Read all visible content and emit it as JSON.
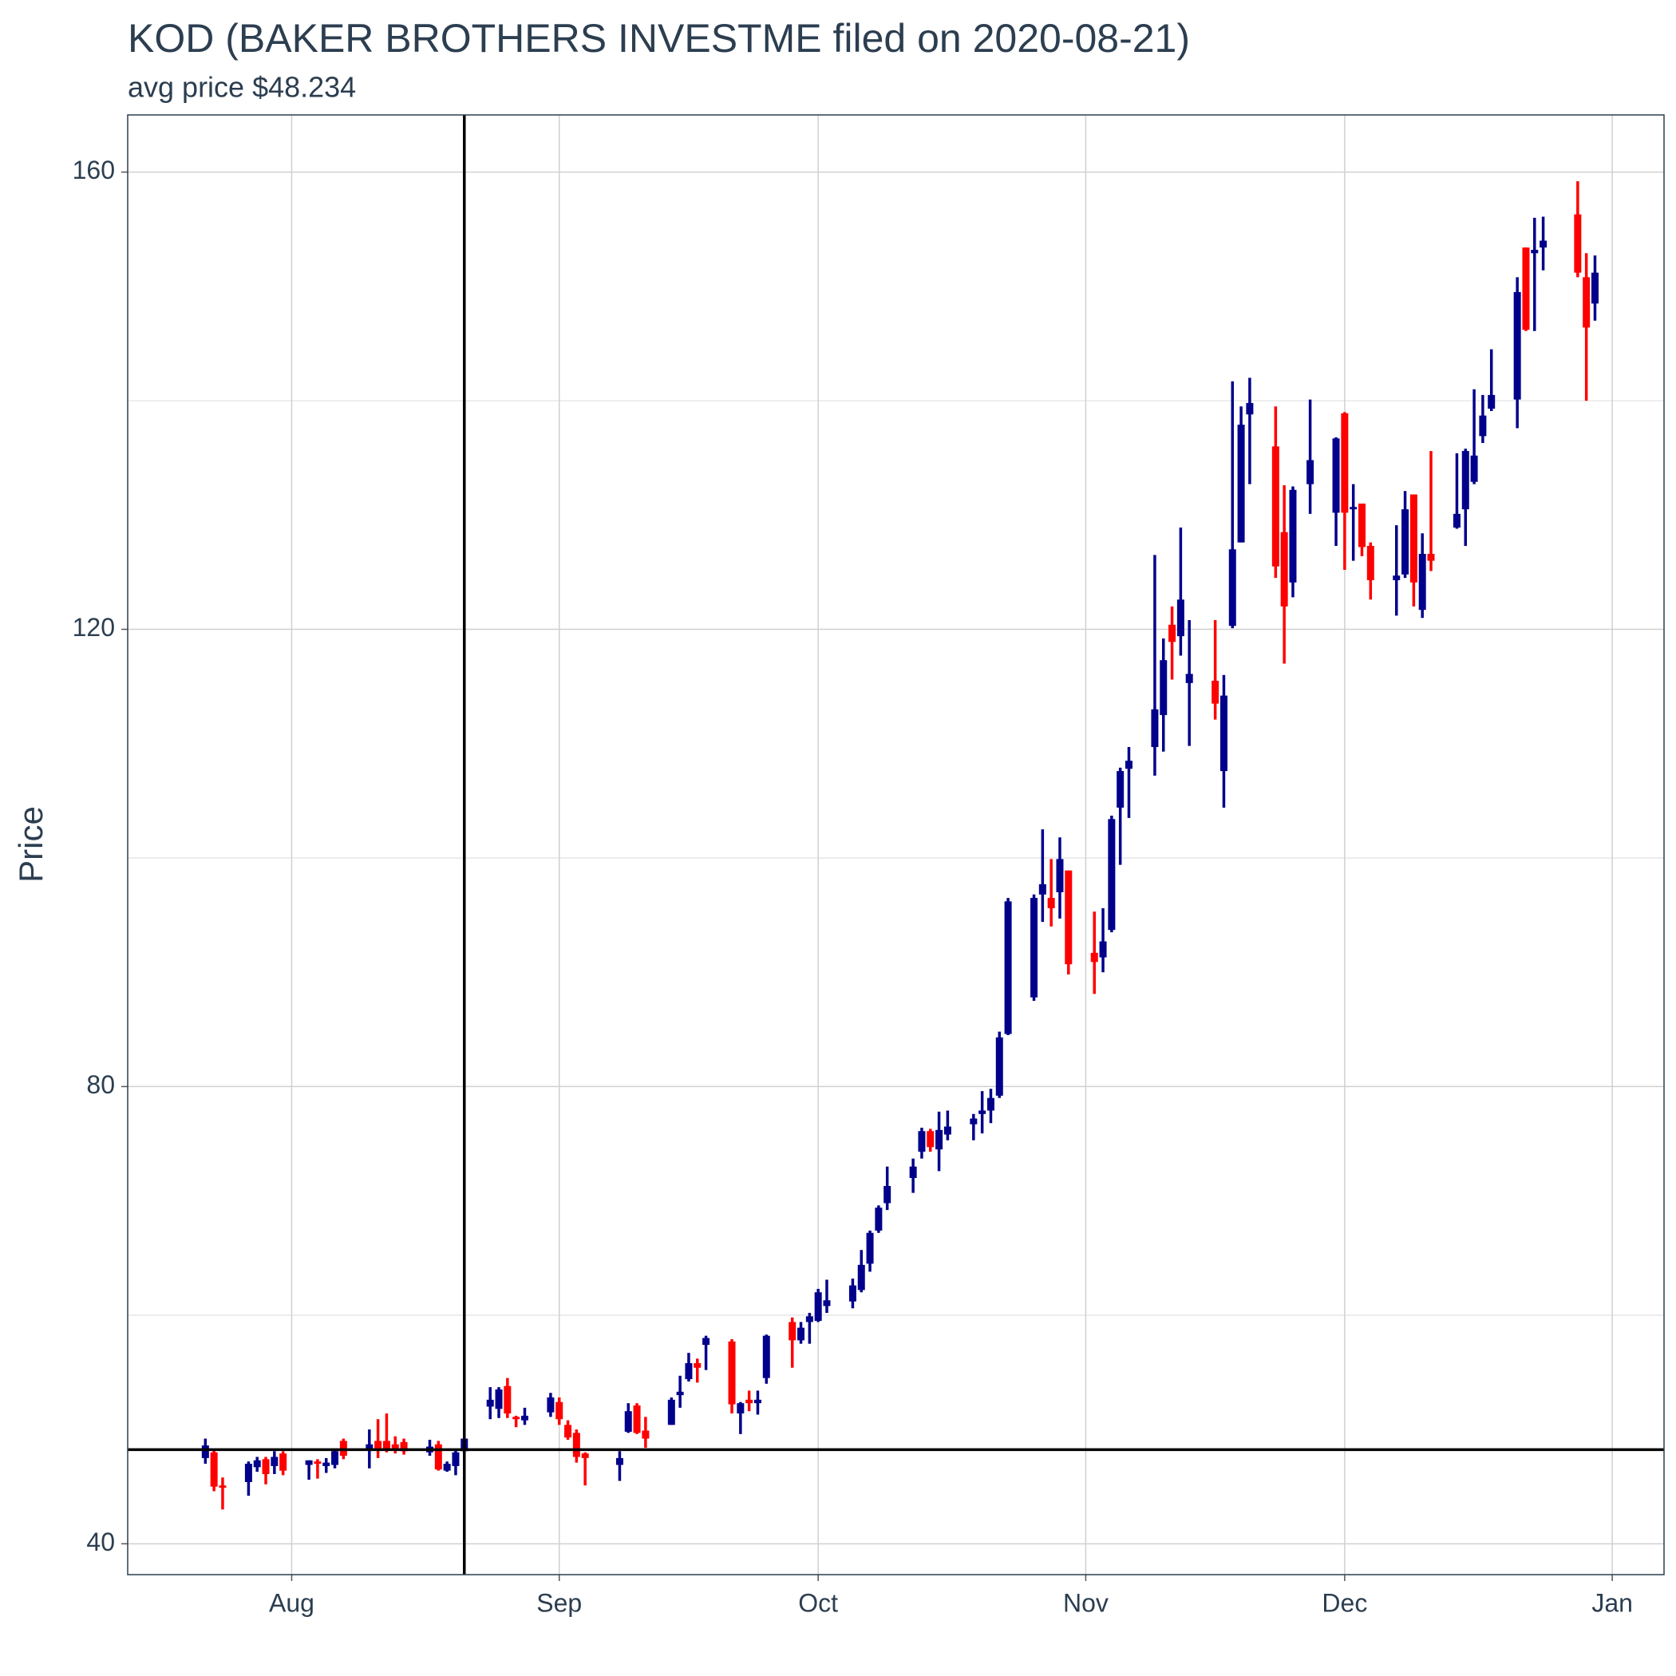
{
  "chart_data": {
    "type": "candlestick",
    "title": "KOD (BAKER BROTHERS INVESTME filed on 2020-08-21)",
    "subtitle": "avg price $48.234",
    "y_label": "Price",
    "x": [
      "2020-07-22",
      "2020-07-23",
      "2020-07-24",
      "2020-07-27",
      "2020-07-28",
      "2020-07-29",
      "2020-07-30",
      "2020-07-31",
      "2020-08-03",
      "2020-08-04",
      "2020-08-05",
      "2020-08-06",
      "2020-08-07",
      "2020-08-10",
      "2020-08-11",
      "2020-08-12",
      "2020-08-13",
      "2020-08-14",
      "2020-08-17",
      "2020-08-18",
      "2020-08-19",
      "2020-08-20",
      "2020-08-21",
      "2020-08-24",
      "2020-08-25",
      "2020-08-26",
      "2020-08-27",
      "2020-08-28",
      "2020-08-31",
      "2020-09-01",
      "2020-09-02",
      "2020-09-03",
      "2020-09-04",
      "2020-09-08",
      "2020-09-09",
      "2020-09-10",
      "2020-09-11",
      "2020-09-14",
      "2020-09-15",
      "2020-09-16",
      "2020-09-17",
      "2020-09-18",
      "2020-09-21",
      "2020-09-22",
      "2020-09-23",
      "2020-09-24",
      "2020-09-25",
      "2020-09-28",
      "2020-09-29",
      "2020-09-30",
      "2020-10-01",
      "2020-10-02",
      "2020-10-05",
      "2020-10-06",
      "2020-10-07",
      "2020-10-08",
      "2020-10-09",
      "2020-10-12",
      "2020-10-13",
      "2020-10-14",
      "2020-10-15",
      "2020-10-16",
      "2020-10-19",
      "2020-10-20",
      "2020-10-21",
      "2020-10-22",
      "2020-10-23",
      "2020-10-26",
      "2020-10-27",
      "2020-10-28",
      "2020-10-29",
      "2020-10-30",
      "2020-11-02",
      "2020-11-03",
      "2020-11-04",
      "2020-11-05",
      "2020-11-06",
      "2020-11-09",
      "2020-11-10",
      "2020-11-11",
      "2020-11-12",
      "2020-11-13",
      "2020-11-16",
      "2020-11-17",
      "2020-11-18",
      "2020-11-19",
      "2020-11-20",
      "2020-11-23",
      "2020-11-24",
      "2020-11-25",
      "2020-11-27",
      "2020-11-30",
      "2020-12-01",
      "2020-12-02",
      "2020-12-03",
      "2020-12-04",
      "2020-12-07",
      "2020-12-08",
      "2020-12-09",
      "2020-12-10",
      "2020-12-11",
      "2020-12-14",
      "2020-12-15",
      "2020-12-16",
      "2020-12-17",
      "2020-12-18",
      "2020-12-21",
      "2020-12-22",
      "2020-12-23",
      "2020-12-24",
      "2020-12-28",
      "2020-12-29",
      "2020-12-30"
    ],
    "open": [
      47.5,
      48.0,
      45.1,
      45.4,
      46.7,
      47.4,
      46.8,
      47.9,
      46.9,
      47.2,
      46.8,
      46.9,
      49.0,
      48.3,
      49.0,
      49.0,
      48.7,
      48.9,
      48.0,
      48.7,
      46.4,
      46.8,
      48.1,
      52.0,
      51.8,
      53.8,
      51.1,
      50.8,
      51.5,
      52.4,
      50.4,
      49.7,
      47.9,
      46.9,
      49.8,
      52.1,
      49.9,
      50.4,
      53.0,
      54.4,
      55.8,
      57.4,
      57.7,
      51.4,
      52.6,
      52.3,
      54.5,
      59.4,
      57.8,
      59.4,
      59.5,
      60.8,
      61.2,
      62.2,
      64.5,
      67.4,
      69.8,
      72.0,
      74.3,
      76.1,
      74.5,
      75.8,
      76.7,
      77.6,
      77.9,
      79.2,
      84.6,
      87.8,
      96.8,
      96.5,
      97.0,
      98.9,
      91.7,
      91.3,
      93.7,
      104.4,
      107.8,
      109.7,
      112.5,
      120.4,
      119.4,
      115.3,
      115.5,
      107.6,
      120.3,
      127.6,
      138.8,
      136.0,
      128.5,
      124.1,
      132.7,
      130.2,
      138.9,
      130.5,
      131.0,
      127.3,
      124.3,
      124.8,
      131.8,
      121.7,
      126.6,
      128.9,
      130.5,
      132.9,
      136.9,
      139.3,
      140.1,
      153.4,
      152.9,
      153.4,
      156.3,
      150.8,
      148.5
    ],
    "high": [
      49.2,
      48.2,
      45.8,
      47.2,
      47.6,
      47.6,
      48.1,
      48.1,
      47.3,
      47.4,
      47.5,
      48.2,
      49.2,
      50.0,
      50.9,
      51.4,
      49.4,
      49.2,
      49.1,
      49.0,
      47.2,
      48.2,
      49.4,
      53.7,
      53.7,
      54.5,
      51.2,
      51.9,
      53.2,
      52.8,
      50.8,
      50.0,
      48.0,
      48.1,
      52.3,
      52.3,
      51.1,
      52.8,
      54.7,
      56.7,
      56.2,
      58.2,
      57.9,
      52.4,
      53.4,
      53.4,
      58.3,
      59.8,
      59.4,
      60.2,
      62.3,
      63.1,
      63.2,
      65.7,
      67.4,
      69.6,
      73.0,
      73.7,
      76.4,
      76.3,
      77.8,
      77.9,
      77.6,
      79.6,
      79.8,
      84.8,
      96.5,
      96.8,
      102.5,
      99.9,
      101.8,
      98.9,
      95.3,
      95.6,
      103.7,
      107.9,
      109.7,
      126.5,
      119.2,
      122.0,
      128.9,
      120.8,
      120.8,
      116.0,
      141.7,
      139.5,
      142.0,
      139.5,
      132.6,
      132.5,
      140.1,
      136.8,
      139.0,
      132.7,
      131.0,
      127.6,
      129.1,
      132.1,
      131.8,
      128.4,
      135.6,
      135.4,
      135.8,
      141.0,
      140.5,
      144.5,
      150.8,
      153.4,
      156.0,
      156.1,
      159.2,
      152.9,
      152.7
    ],
    "low": [
      47.0,
      44.6,
      43.0,
      44.2,
      46.3,
      45.2,
      46.1,
      46.0,
      45.6,
      45.7,
      46.2,
      46.6,
      47.4,
      46.6,
      47.5,
      48.0,
      47.9,
      47.8,
      47.7,
      46.4,
      46.3,
      46.0,
      47.8,
      50.9,
      51.0,
      51.0,
      50.2,
      50.4,
      51.1,
      50.4,
      49.1,
      47.1,
      45.1,
      45.5,
      49.7,
      49.6,
      48.4,
      50.4,
      51.9,
      54.2,
      54.1,
      55.2,
      51.4,
      49.6,
      51.6,
      51.3,
      54.0,
      55.4,
      57.5,
      57.5,
      59.4,
      60.2,
      60.6,
      62.0,
      63.8,
      67.2,
      69.2,
      70.7,
      73.7,
      74.3,
      72.6,
      75.3,
      75.3,
      75.9,
      76.8,
      79.0,
      84.5,
      87.5,
      94.4,
      94.0,
      94.7,
      89.8,
      88.1,
      90.0,
      93.5,
      99.4,
      103.5,
      107.2,
      109.3,
      115.6,
      117.7,
      109.8,
      112.1,
      104.4,
      120.1,
      127.6,
      132.7,
      124.5,
      117.0,
      122.8,
      130.1,
      127.3,
      125.2,
      126.0,
      126.4,
      122.6,
      121.2,
      124.5,
      122.0,
      121.0,
      125.1,
      128.8,
      127.3,
      132.7,
      136.3,
      139.1,
      137.6,
      146.1,
      146.1,
      151.4,
      150.8,
      140.0,
      147.0
    ],
    "close": [
      48.6,
      45.0,
      44.9,
      47.0,
      47.3,
      46.1,
      47.6,
      46.4,
      47.3,
      47.0,
      47.1,
      48.1,
      47.7,
      48.7,
      48.3,
      48.3,
      48.2,
      48.1,
      48.5,
      46.5,
      47.0,
      48.0,
      49.2,
      52.6,
      53.5,
      51.4,
      50.9,
      51.2,
      52.8,
      50.9,
      49.3,
      47.6,
      47.5,
      47.5,
      51.6,
      49.7,
      49.2,
      52.6,
      53.3,
      55.8,
      55.4,
      58.0,
      52.2,
      52.3,
      52.3,
      52.6,
      58.2,
      57.8,
      58.9,
      59.9,
      62.0,
      61.3,
      62.6,
      64.4,
      67.2,
      69.4,
      71.3,
      73.0,
      76.1,
      74.7,
      76.2,
      76.5,
      77.2,
      77.9,
      79.0,
      84.3,
      96.2,
      96.5,
      97.7,
      95.6,
      99.9,
      90.7,
      90.9,
      92.7,
      103.4,
      107.6,
      108.5,
      113.0,
      117.3,
      118.9,
      122.6,
      116.1,
      113.5,
      114.2,
      127.0,
      137.9,
      139.8,
      125.5,
      122.0,
      132.2,
      134.8,
      136.7,
      130.2,
      130.7,
      127.2,
      124.3,
      124.7,
      130.5,
      124.1,
      126.6,
      126.0,
      130.1,
      135.6,
      135.2,
      138.7,
      140.5,
      149.5,
      146.2,
      153.2,
      154.0,
      151.2,
      146.4,
      151.2
    ],
    "up_color": "#00008b",
    "down_color": "#ff0000",
    "xlim": [
      "2020-07-13",
      "2021-01-07"
    ],
    "xticks": [
      {
        "value": "2020-08-01",
        "label": "Aug"
      },
      {
        "value": "2020-09-01",
        "label": "Sep"
      },
      {
        "value": "2020-10-01",
        "label": "Oct"
      },
      {
        "value": "2020-11-01",
        "label": "Nov"
      },
      {
        "value": "2020-12-01",
        "label": "Dec"
      },
      {
        "value": "2021-01-01",
        "label": "Jan"
      }
    ],
    "ylim": [
      37.3,
      165
    ],
    "yticks": [
      40,
      80,
      120,
      160
    ],
    "yticks_minor": [
      60,
      100,
      140
    ],
    "grid": true,
    "vline": "2020-08-21",
    "hline": 48.234
  }
}
